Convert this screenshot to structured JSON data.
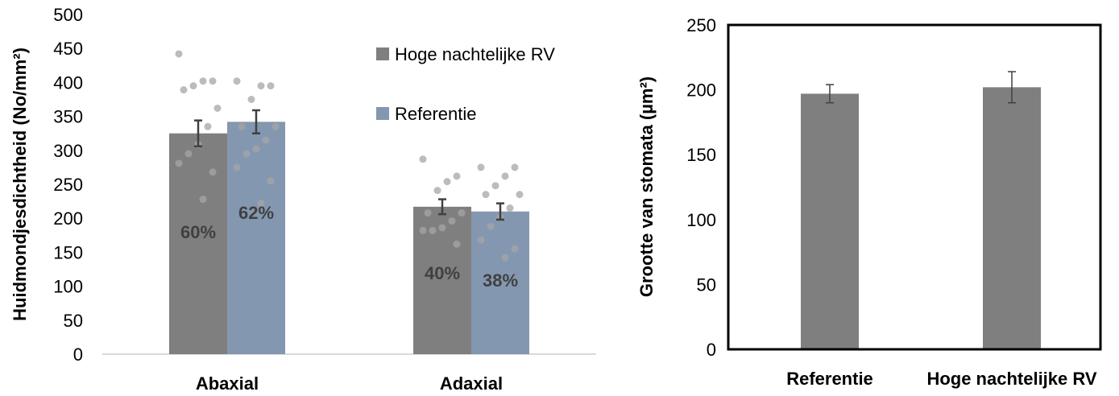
{
  "chart_data": [
    {
      "type": "bar",
      "ylabel": "Huidmondjesdichtheid (No/mm²)",
      "ylim": [
        0,
        500
      ],
      "yticks": [
        0,
        50,
        100,
        150,
        200,
        250,
        300,
        350,
        400,
        450,
        500
      ],
      "categories": [
        "Abaxial",
        "Adaxial"
      ],
      "grid": false,
      "legend_position": "top-right",
      "series": [
        {
          "name": "Hoge nachtelijke RV",
          "color": "#7f7f7f",
          "values": [
            325,
            217
          ],
          "errors": [
            19,
            11
          ],
          "bar_labels": [
            "60%",
            "40%"
          ],
          "points": [
            [
              442,
              402,
              402,
              395,
              389,
              362,
              335,
              309,
              295,
              281,
              268,
              228
            ],
            [
              287,
              262,
              254,
              241,
              208,
              208,
              196,
              186,
              182,
              182,
              162
            ]
          ]
        },
        {
          "name": "Referentie",
          "color": "#8497b0",
          "values": [
            342,
            210
          ],
          "errors": [
            17,
            12
          ],
          "bar_labels": [
            "62%",
            "38%"
          ],
          "points": [
            [
              402,
              395,
              395,
              375,
              335,
              335,
              315,
              302,
              295,
              275,
              255,
              222
            ],
            [
              275,
              275,
              262,
              248,
              235,
              235,
              215,
              202,
              188,
              168,
              155,
              142
            ]
          ]
        }
      ]
    },
    {
      "type": "bar",
      "ylabel": "Grootte van stomata (µm²)",
      "ylim": [
        0,
        250
      ],
      "yticks": [
        0,
        50,
        100,
        150,
        200,
        250
      ],
      "categories": [
        "Referentie",
        "Hoge nachtelijke RV"
      ],
      "grid": false,
      "series": [
        {
          "color": "#7f7f7f",
          "values": [
            197,
            202
          ],
          "errors": [
            7,
            12
          ]
        }
      ]
    }
  ]
}
